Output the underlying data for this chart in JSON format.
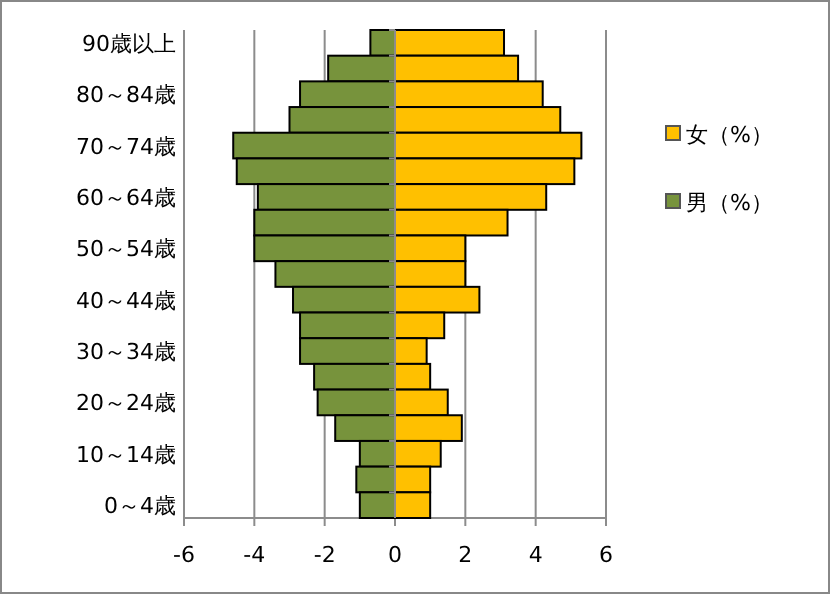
{
  "chart_data": {
    "type": "bar",
    "orientation": "horizontal",
    "stacked": true,
    "categories": [
      "90歳以上",
      null,
      "80～84歳",
      null,
      "70～74歳",
      null,
      "60～64歳",
      null,
      "50～54歳",
      null,
      "40～44歳",
      null,
      "30～34歳",
      null,
      "20～24歳",
      null,
      "10～14歳",
      null,
      "0～4歳"
    ],
    "series": [
      {
        "name": "女（%）",
        "color": "#ffc000",
        "values": [
          3.1,
          3.5,
          4.2,
          4.7,
          5.3,
          5.1,
          4.3,
          3.2,
          2.0,
          2.0,
          2.4,
          1.4,
          0.9,
          1.0,
          1.5,
          1.9,
          1.3,
          1.0,
          1.0
        ]
      },
      {
        "name": "男（%）",
        "color": "#77933c",
        "values": [
          -0.7,
          -1.9,
          -2.7,
          -3.0,
          -4.6,
          -4.5,
          -3.9,
          -4.0,
          -4.0,
          -3.4,
          -2.9,
          -2.7,
          -2.7,
          -2.3,
          -2.2,
          -1.7,
          -1.0,
          -1.1,
          -1.0
        ]
      }
    ],
    "xlim": [
      -6,
      6
    ],
    "xticks": [
      -6,
      -4,
      -2,
      0,
      2,
      4,
      6
    ],
    "grid": "x",
    "legend": "right"
  }
}
